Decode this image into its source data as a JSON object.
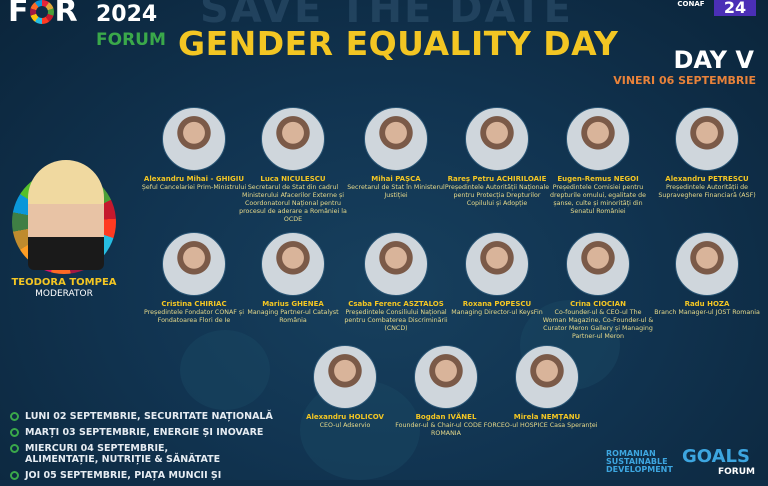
{
  "header": {
    "background_text": "SAVE THE DATE",
    "logo_for": "FOR",
    "logo_year": "2024",
    "logo_forum": "FORUM",
    "title": "GENDER EQUALITY DAY",
    "partner_logo_conaf": "CONAF",
    "partner_logo_24": "24",
    "day_label": "DAY V",
    "date": "VINERI 06 SEPTEMBRIE"
  },
  "colors": {
    "title": "#f3c623",
    "date": "#e8823a",
    "background": "#0f2d47",
    "forum_green": "#3aa84a"
  },
  "moderator": {
    "name": "TEODORA TOMPEA",
    "role": "MODERATOR"
  },
  "speakers": [
    {
      "name": "Alexandru Mihai - GHIGIU",
      "role": "Șeful Cancelariei Prim-Ministrului"
    },
    {
      "name": "Luca NICULESCU",
      "role": "Secretarul de Stat din cadrul Ministerului Afacerilor Externe și Coordonatorul Național pentru procesul de aderare a României la OCDE"
    },
    {
      "name": "Mihai PAȘCA",
      "role": "Secretarul de Stat în Ministerul Justiției"
    },
    {
      "name": "Rareș Petru ACHIRILOAIE",
      "role": "Președintele Autorității Naționale pentru Protecția Drepturilor Copilului și Adopție"
    },
    {
      "name": "Eugen-Remus NEGOI",
      "role": "Președintele Comisiei pentru drepturile omului, egalitate de șanse, culte și minorități din Senatul României"
    },
    {
      "name": "Alexandru PETRESCU",
      "role": "Președintele Autorității de Supraveghere Financiară (ASF)"
    },
    {
      "name": "Cristina CHIRIAC",
      "role": "Președintele Fondator CONAF și Fondatoarea Flori de Ie"
    },
    {
      "name": "Marius GHENEA",
      "role": "Managing Partner-ul Catalyst România"
    },
    {
      "name": "Csaba Ferenc ASZTALOS",
      "role": "Președintele Consiliului Național pentru Combaterea Discriminării (CNCD)"
    },
    {
      "name": "Roxana POPESCU",
      "role": "Managing Director-ul KeysFin"
    },
    {
      "name": "Crina CIOCIAN",
      "role": "Co-founder-ul & CEO-ul The Woman Magazine, Co-Founder-ul & Curator Meron Gallery și Managing Partner-ul Meron"
    },
    {
      "name": "Radu HOZA",
      "role": "Branch Manager-ul JOST Romania"
    },
    {
      "name": "Alexandru HOLICOV",
      "role": "CEO-ul Adservio"
    },
    {
      "name": "Bogdan IVĂNEL",
      "role": "Founder-ul & Chair-ul CODE FOR ROMANIA"
    },
    {
      "name": "Mirela NEMȚANU",
      "role": "CEO-ul HOSPICE Casa Speranței"
    }
  ],
  "schedule": [
    "LUNI 02 SEPTEMBRIE, SECURITATE NAȚIONALĂ",
    "MARȚI 03 SEPTEMBRIE, ENERGIE ȘI INOVARE",
    "MIERCURI 04 SEPTEMBRIE, ALIMENTAȚIE, NUTRIȚIE & SĂNĂTATE",
    "JOI 05 SEPTEMBRIE, PIAȚA MUNCII ȘI"
  ],
  "footer_logo": {
    "line1": "ROMANIAN",
    "line2": "SUSTAINABLE",
    "line3": "DEVELOPMENT",
    "goals": "GOALS",
    "forum": "FORUM"
  }
}
